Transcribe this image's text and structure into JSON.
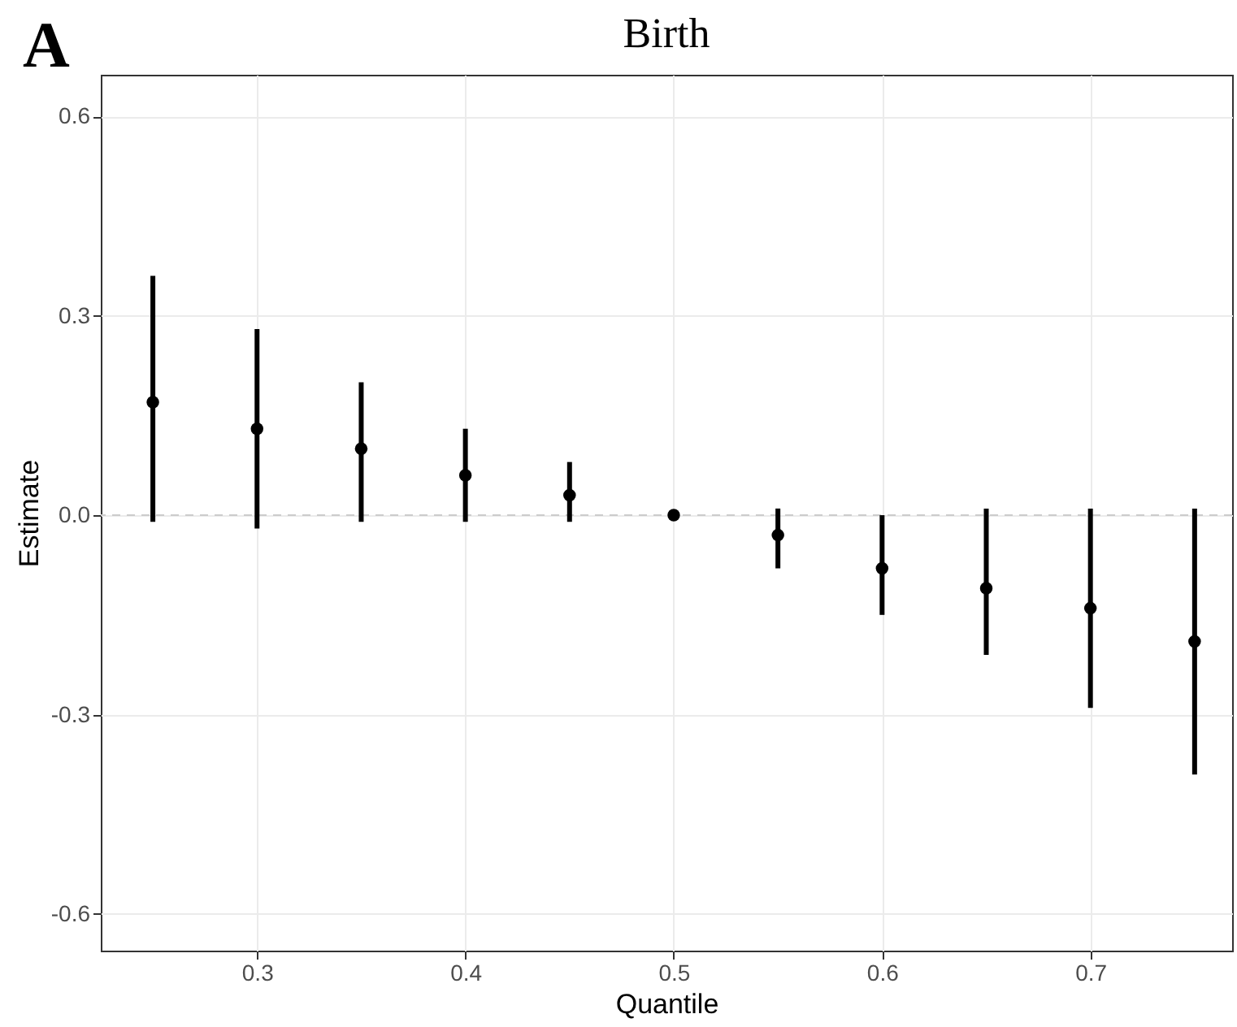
{
  "chart_data": {
    "type": "scatter",
    "title": "Birth",
    "xlabel": "Quantile",
    "ylabel": "Estimate",
    "annotations": [
      "A"
    ],
    "x": [
      0.25,
      0.3,
      0.35,
      0.4,
      0.45,
      0.5,
      0.55,
      0.6,
      0.65,
      0.7,
      0.75
    ],
    "series": [
      {
        "color": "#000000",
        "values": [
          0.17,
          0.13,
          0.1,
          0.06,
          0.03,
          0,
          -0.03,
          -0.08,
          -0.11,
          -0.14,
          -0.19
        ],
        "errors": [
          [
            -0.01,
            0.36
          ],
          [
            -0.02,
            0.28
          ],
          [
            -0.01,
            0.2
          ],
          [
            -0.01,
            0.13
          ],
          [
            -0.01,
            0.08
          ],
          null,
          [
            -0.08,
            0.01
          ],
          [
            -0.15,
            0
          ],
          [
            -0.21,
            0.01
          ],
          [
            -0.29,
            0.01
          ],
          [
            -0.39,
            0.01
          ]
        ]
      }
    ],
    "xlim": [
      0.225,
      0.768
    ],
    "xticks": [
      0.3,
      0.4,
      0.5,
      0.6,
      0.7
    ],
    "ylim": [
      -0.655,
      0.6625
    ],
    "yticks": [
      {
        "value": -0.6,
        "label": "-0.6"
      },
      {
        "value": -0.3,
        "label": "-0.3"
      },
      {
        "value": 0,
        "label": "0.0"
      },
      {
        "value": 0.3,
        "label": "0.3"
      },
      {
        "value": 0.6,
        "label": "0.6"
      }
    ],
    "ref_lines": [
      {
        "axis": "y",
        "value": 0,
        "color": "#cccccc",
        "line_style": "dashed"
      }
    ],
    "grid": true,
    "marker": "circle"
  }
}
